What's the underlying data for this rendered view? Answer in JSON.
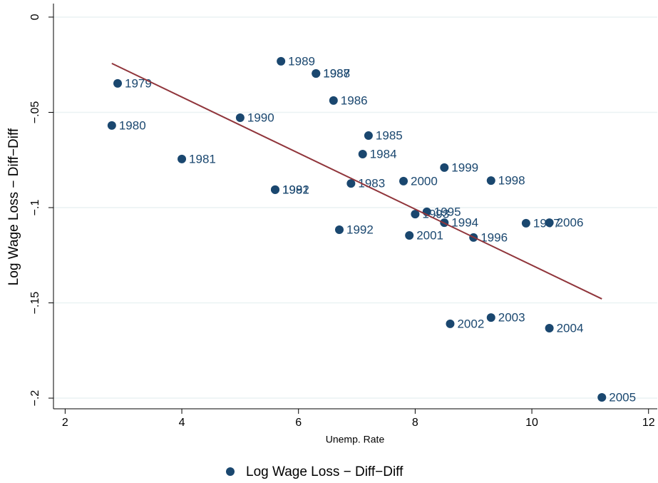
{
  "chart_data": {
    "type": "scatter",
    "x_label": "Unemp. Rate",
    "y_label": "Log Wage Loss − Diff−Diff",
    "x": [
      2.9,
      2.8,
      4.0,
      5.6,
      6.9,
      7.1,
      7.2,
      6.6,
      6.3,
      6.3,
      5.7,
      5.0,
      5.6,
      6.7,
      8.0,
      8.5,
      8.2,
      9.0,
      9.9,
      9.3,
      8.5,
      7.8,
      7.9,
      8.6,
      9.3,
      10.3,
      11.2,
      10.3
    ],
    "series": [
      {
        "name": "Log Wage Loss − Diff−Diff",
        "color": "#1a476f",
        "values": [
          -0.0348,
          -0.0569,
          -0.0745,
          -0.0906,
          -0.0873,
          -0.0719,
          -0.0622,
          -0.0438,
          -0.0296,
          -0.0296,
          -0.0232,
          -0.0528,
          -0.0906,
          -0.1116,
          -0.1034,
          -0.1079,
          -0.1022,
          -0.1157,
          -0.1082,
          -0.0858,
          -0.079,
          -0.0861,
          -0.1146,
          -0.161,
          -0.1577,
          -0.1633,
          -0.1996,
          -0.1079
        ],
        "labels": [
          "1979",
          "1980",
          "1981",
          "1982",
          "1983",
          "1984",
          "1985",
          "1986",
          "1987",
          "1988",
          "1989",
          "1990",
          "1991",
          "1992",
          "1993",
          "1994",
          "1995",
          "1996",
          "1997",
          "1998",
          "1999",
          "2000",
          "2001",
          "2002",
          "2003",
          "2004",
          "2005",
          "2006"
        ]
      }
    ],
    "fit": {
      "x": [
        2.8,
        11.2
      ],
      "values": [
        -0.0243,
        -0.1479
      ],
      "color": "#90353b"
    },
    "xlim": [
      1.8,
      12.15
    ],
    "xticks": [
      2,
      4,
      6,
      8,
      10,
      12
    ],
    "ylim": [
      -0.2056,
      0.0071
    ],
    "yticks": [
      0,
      {
        "value": -0.05,
        "label": "−.05"
      },
      {
        "value": -0.1,
        "label": "−.1"
      },
      {
        "value": -0.15,
        "label": "−.15"
      },
      {
        "value": -0.2,
        "label": "−.2"
      }
    ],
    "grid": true,
    "legend": "bottom"
  }
}
